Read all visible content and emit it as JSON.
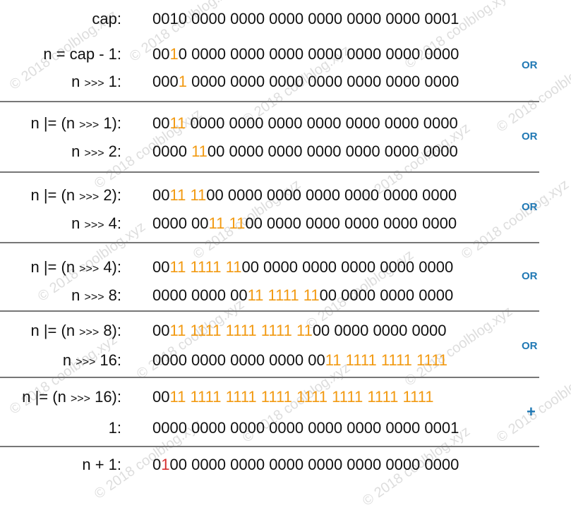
{
  "rows": [
    {
      "label": "cap:",
      "bits": "0010 0000 0000 0000 0000 0000 0000 0001",
      "hl": []
    },
    {
      "label": "n = cap - 1:",
      "bits": "0010 0000 0000 0000 0000 0000 0000 0000",
      "hl": [
        [
          2,
          1,
          "o"
        ]
      ]
    },
    {
      "label": "n >>> 1:",
      "bits": "0001 0000 0000 0000 0000 0000 0000 0000",
      "hl": [
        [
          3,
          1,
          "o"
        ]
      ]
    },
    {
      "label": "n |= (n >>> 1):",
      "bits": "0011 0000 0000 0000 0000 0000 0000 0000",
      "hl": [
        [
          2,
          2,
          "o"
        ]
      ]
    },
    {
      "label": "n >>> 2:",
      "bits": "0000 1100 0000 0000 0000 0000 0000 0000",
      "hl": [
        [
          5,
          2,
          "o"
        ]
      ]
    },
    {
      "label": "n |= (n >>> 2):",
      "bits": "0011 1100 0000 0000 0000 0000 0000 0000",
      "hl": [
        [
          2,
          2,
          "o"
        ],
        [
          5,
          2,
          "o"
        ]
      ]
    },
    {
      "label": "n >>> 4:",
      "bits": "0000 0011 1100 0000 0000 0000 0000 0000",
      "hl": [
        [
          7,
          2,
          "o"
        ],
        [
          10,
          2,
          "o"
        ]
      ]
    },
    {
      "label": "n |= (n >>> 4):",
      "bits": "0011 1111 1100 0000 0000 0000 0000 0000",
      "hl": [
        [
          2,
          2,
          "o"
        ],
        [
          5,
          4,
          "o"
        ],
        [
          10,
          2,
          "o"
        ]
      ]
    },
    {
      "label": "n >>> 8:",
      "bits": "0000 0000 0011 1111 1100 0000 0000 0000",
      "hl": [
        [
          12,
          2,
          "o"
        ],
        [
          15,
          4,
          "o"
        ],
        [
          20,
          2,
          "o"
        ]
      ]
    },
    {
      "label": "n |= (n >>> 8):",
      "bits": "0011 1111 1111 1111 1100 0000 0000 0000",
      "hl": [
        [
          2,
          2,
          "o"
        ],
        [
          5,
          4,
          "o"
        ],
        [
          10,
          4,
          "o"
        ],
        [
          15,
          4,
          "o"
        ],
        [
          20,
          2,
          "o"
        ]
      ]
    },
    {
      "label": "n >>> 16:",
      "bits": "0000 0000 0000 0000 0011 1111 1111 1111",
      "hl": [
        [
          22,
          2,
          "o"
        ],
        [
          25,
          4,
          "o"
        ],
        [
          30,
          4,
          "o"
        ],
        [
          35,
          4,
          "o"
        ]
      ]
    },
    {
      "label": "n |= (n >>> 16):",
      "bits": "0011 1111 1111 1111 1111 1111 1111 1111",
      "hl": [
        [
          2,
          2,
          "o"
        ],
        [
          5,
          4,
          "o"
        ],
        [
          10,
          4,
          "o"
        ],
        [
          15,
          4,
          "o"
        ],
        [
          20,
          4,
          "o"
        ],
        [
          25,
          4,
          "o"
        ],
        [
          30,
          4,
          "o"
        ],
        [
          35,
          4,
          "o"
        ]
      ]
    },
    {
      "label": "1:",
      "bits": "0000 0000 0000 0000 0000 0000 0000 0001",
      "hl": []
    },
    {
      "label": "n + 1:",
      "bits": "0100 0000 0000 0000 0000 0000 0000 0000",
      "hl": [
        [
          1,
          1,
          "r"
        ]
      ]
    }
  ],
  "operators": [
    "OR",
    "OR",
    "OR",
    "OR",
    "OR",
    "+"
  ],
  "watermark_text": "© 2018 coolblog.xyz",
  "colors": {
    "highlight": "#f29a12",
    "result": "#d42f2f",
    "operator": "#1f78b4",
    "divider": "#777777"
  }
}
